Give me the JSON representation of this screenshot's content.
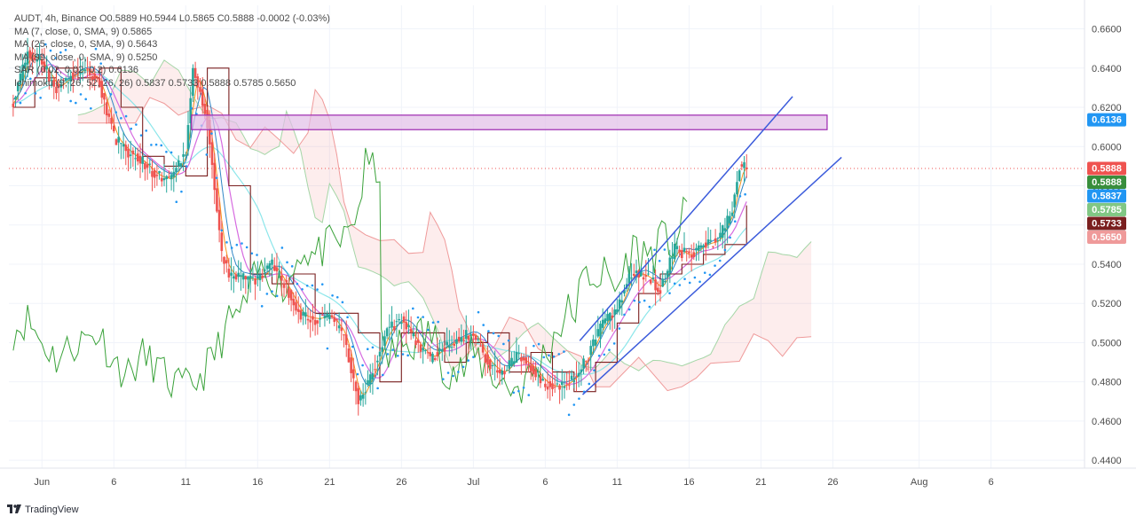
{
  "header": {
    "symbol_line": "AUDT, 4h, Binance O0.5889 H0.5944 L0.5865 C0.5888 -0.0002 (-0.03%)",
    "ma7_line": "MA (7, close, 0, SMA, 9) 0.5865",
    "ma25_line": "MA (25, close, 0, SMA, 9) 0.5643",
    "ma99_line": "MA (99, close, 0, SMA, 9) 0.5250",
    "sar_line": "SAR (0.02, 0.02, 0.2) 0.6136",
    "ichimoku_line": "Ichimoku (9, 26, 52, 26, 26) 0.5837 0.5733 0.5888 0.5785 0.5650"
  },
  "footer": {
    "brand": "TradingView"
  },
  "colors": {
    "grid": "#f0f3fa",
    "bull": "#26a69a",
    "bear": "#ef5350",
    "ma7": "#f7931a",
    "ma25": "#d66ae0",
    "ma99": "#7fe3e8",
    "tenkan": "#2f86c6",
    "kijun": "#7a1f1f",
    "chikou": "#3aa23a",
    "sar": "#2196f3",
    "channel": "#3b5bdb",
    "zone_fill": "#e1bee7",
    "zone_border": "#9c27b0"
  },
  "chart_data": {
    "type": "candlestick",
    "title": "AUDT, 4h, Binance",
    "y_axis": {
      "ticks": [
        "0.6600",
        "0.6400",
        "0.6200",
        "0.6000",
        "0.5800",
        "0.5600",
        "0.5400",
        "0.5200",
        "0.5000",
        "0.4800",
        "0.4600",
        "0.4400"
      ],
      "ylim": [
        0.436,
        0.672
      ]
    },
    "x_axis": {
      "labels": [
        {
          "label": "Jun",
          "day": 0
        },
        {
          "label": "6",
          "day": 5
        },
        {
          "label": "11",
          "day": 10
        },
        {
          "label": "16",
          "day": 15
        },
        {
          "label": "21",
          "day": 20
        },
        {
          "label": "26",
          "day": 25
        },
        {
          "label": "Jul",
          "day": 30
        },
        {
          "label": "6",
          "day": 35
        },
        {
          "label": "11",
          "day": 40
        },
        {
          "label": "16",
          "day": 45
        },
        {
          "label": "21",
          "day": 50
        },
        {
          "label": "26",
          "day": 55
        },
        {
          "label": "Aug",
          "day": 61
        },
        {
          "label": "6",
          "day": 66
        }
      ],
      "xlim": [
        -2.3,
        72.5
      ]
    },
    "price_track": [
      [
        -2.0,
        0.622
      ],
      [
        -1.0,
        0.648
      ],
      [
        0.0,
        0.642
      ],
      [
        1.0,
        0.63
      ],
      [
        2.0,
        0.636
      ],
      [
        3.0,
        0.64
      ],
      [
        4.0,
        0.632
      ],
      [
        5.0,
        0.605
      ],
      [
        6.0,
        0.597
      ],
      [
        7.0,
        0.592
      ],
      [
        8.0,
        0.585
      ],
      [
        9.0,
        0.583
      ],
      [
        10.0,
        0.598
      ],
      [
        10.5,
        0.64
      ],
      [
        11.0,
        0.628
      ],
      [
        11.5,
        0.612
      ],
      [
        12.0,
        0.58
      ],
      [
        12.5,
        0.545
      ],
      [
        13.0,
        0.535
      ],
      [
        14.0,
        0.533
      ],
      [
        15.0,
        0.532
      ],
      [
        16.0,
        0.54
      ],
      [
        17.0,
        0.528
      ],
      [
        18.0,
        0.514
      ],
      [
        19.0,
        0.512
      ],
      [
        20.0,
        0.514
      ],
      [
        21.0,
        0.504
      ],
      [
        22.0,
        0.47
      ],
      [
        23.0,
        0.485
      ],
      [
        24.0,
        0.506
      ],
      [
        25.0,
        0.512
      ],
      [
        26.0,
        0.5
      ],
      [
        27.0,
        0.492
      ],
      [
        28.0,
        0.498
      ],
      [
        29.0,
        0.502
      ],
      [
        30.0,
        0.505
      ],
      [
        31.0,
        0.49
      ],
      [
        32.0,
        0.484
      ],
      [
        33.0,
        0.493
      ],
      [
        34.0,
        0.488
      ],
      [
        35.0,
        0.479
      ],
      [
        36.0,
        0.477
      ],
      [
        37.0,
        0.482
      ],
      [
        38.0,
        0.494
      ],
      [
        39.0,
        0.51
      ],
      [
        40.0,
        0.517
      ],
      [
        41.0,
        0.536
      ],
      [
        42.0,
        0.534
      ],
      [
        43.0,
        0.527
      ],
      [
        44.0,
        0.548
      ],
      [
        45.0,
        0.544
      ],
      [
        46.0,
        0.55
      ],
      [
        47.0,
        0.552
      ],
      [
        48.0,
        0.568
      ],
      [
        48.5,
        0.59
      ],
      [
        49.0,
        0.5888
      ]
    ],
    "series": [
      {
        "name": "MA (7, close, 0, SMA, 9)",
        "last": 0.5865
      },
      {
        "name": "MA (25, close, 0, SMA, 9)",
        "last": 0.5643
      },
      {
        "name": "MA (99, close, 0, SMA, 9)",
        "last": 0.525
      },
      {
        "name": "SAR (0.02, 0.02, 0.2)",
        "last": 0.6136
      },
      {
        "name": "Ichimoku (9, 26, 52, 26, 26)",
        "values": [
          0.5837,
          0.5733,
          0.5888,
          0.5785,
          0.565
        ]
      }
    ],
    "price_labels": [
      {
        "value": 0.6136,
        "text": "0.6136",
        "color": "#2196f3"
      },
      {
        "value": 0.5888,
        "text": "0.5888",
        "color": "#ef5350"
      },
      {
        "value": 0.5888,
        "text": "0.5888",
        "color": "#388e3c"
      },
      {
        "value": 0.5837,
        "text": "0.5837",
        "color": "#2196f3"
      },
      {
        "value": 0.5785,
        "text": "0.5785",
        "color": "#81c784"
      },
      {
        "value": 0.5733,
        "text": "0.5733",
        "color": "#7a1f1f"
      },
      {
        "value": 0.565,
        "text": "0.5650",
        "color": "#ef9a9a"
      }
    ],
    "annotations": {
      "resistance_zone": {
        "day_start": 10.4,
        "day_end": 54.6,
        "price_top": 0.616,
        "price_bottom": 0.6086
      },
      "channel_upper": {
        "day_start": 37.4,
        "price_start": 0.501,
        "day_end": 52.2,
        "price_end": 0.6255
      },
      "channel_lower": {
        "day_start": 37.6,
        "price_start": 0.4735,
        "day_end": 55.6,
        "price_end": 0.5945
      },
      "last_price_line": 0.5888
    }
  }
}
